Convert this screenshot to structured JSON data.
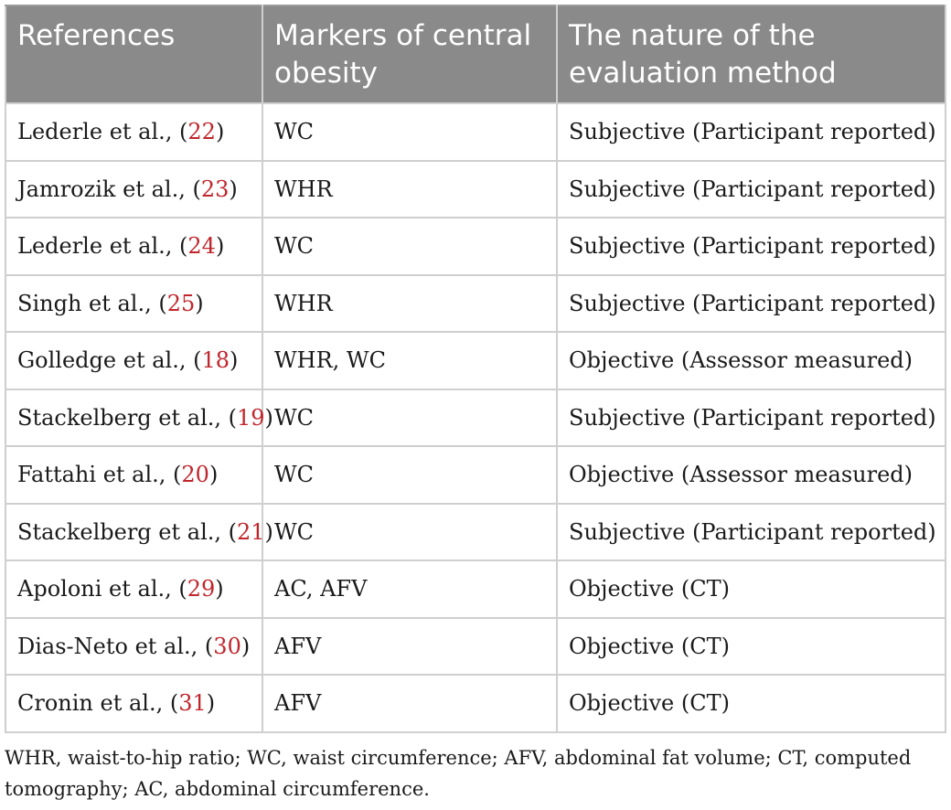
{
  "table": {
    "headers": [
      "References",
      "Markers of central obesity",
      "The nature of the evaluation method"
    ],
    "rows": [
      {
        "ref_prefix": "Lederle et al., (",
        "ref_num": "22",
        "ref_suffix": ")",
        "markers": "WC",
        "method": "Subjective (Participant reported)"
      },
      {
        "ref_prefix": "Jamrozik et al., (",
        "ref_num": "23",
        "ref_suffix": ")",
        "markers": "WHR",
        "method": "Subjective (Participant reported)"
      },
      {
        "ref_prefix": "Lederle et al., (",
        "ref_num": "24",
        "ref_suffix": ")",
        "markers": "WC",
        "method": "Subjective (Participant reported)"
      },
      {
        "ref_prefix": "Singh et al., (",
        "ref_num": "25",
        "ref_suffix": ")",
        "markers": "WHR",
        "method": "Subjective (Participant reported)"
      },
      {
        "ref_prefix": "Golledge et al., (",
        "ref_num": "18",
        "ref_suffix": ")",
        "markers": "WHR, WC",
        "method": "Objective (Assessor measured)"
      },
      {
        "ref_prefix": "Stackelberg et al., (",
        "ref_num": "19",
        "ref_suffix": ")",
        "markers": "WC",
        "method": "Subjective (Participant reported)"
      },
      {
        "ref_prefix": "Fattahi et al., (",
        "ref_num": "20",
        "ref_suffix": ")",
        "markers": "WC",
        "method": "Objective (Assessor measured)"
      },
      {
        "ref_prefix": "Stackelberg et al., (",
        "ref_num": "21",
        "ref_suffix": ")",
        "markers": "WC",
        "method": "Subjective (Participant reported)"
      },
      {
        "ref_prefix": "Apoloni et al., (",
        "ref_num": "29",
        "ref_suffix": ")",
        "markers": "AC, AFV",
        "method": "Objective (CT)"
      },
      {
        "ref_prefix": "Dias-Neto et al., (",
        "ref_num": "30",
        "ref_suffix": ")",
        "markers": "AFV",
        "method": "Objective (CT)"
      },
      {
        "ref_prefix": "Cronin et al., (",
        "ref_num": "31",
        "ref_suffix": ")",
        "markers": "AFV",
        "method": "Objective (CT)"
      }
    ]
  },
  "footnote": "WHR, waist-to-hip ratio; WC, waist circumference; AFV, abdominal fat volume; CT, computed tomography; AC, abdominal circumference.",
  "colors": {
    "header_bg": "#8a8a8a",
    "header_text": "#ffffff",
    "reference_link": "#c0262c",
    "grid": "#cfcfcf"
  }
}
